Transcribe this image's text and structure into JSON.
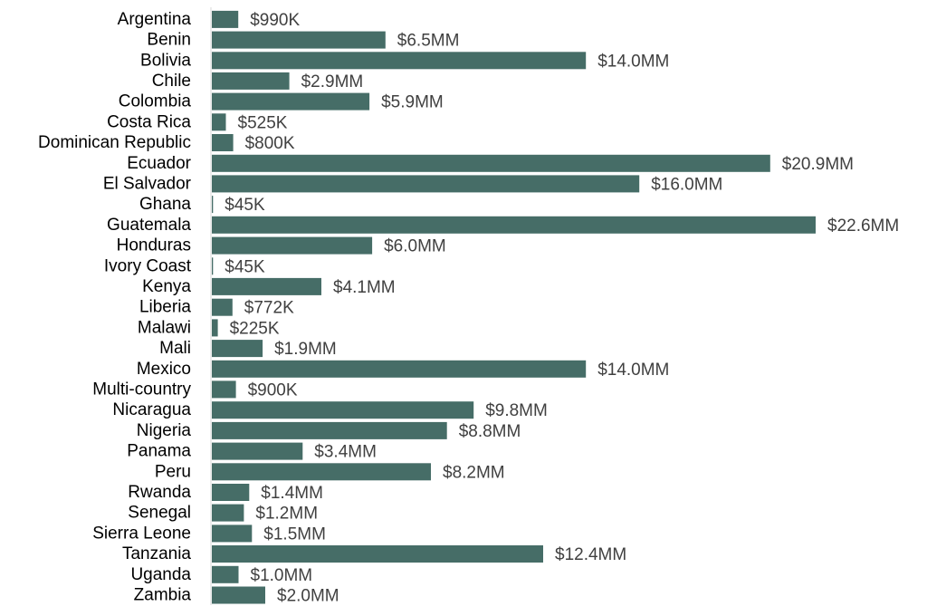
{
  "chart_data": {
    "type": "bar",
    "orientation": "horizontal",
    "title": "",
    "xlabel": "",
    "ylabel": "",
    "grid": false,
    "legend": "none",
    "bar_color": "#466D67",
    "axis_color": "#d9d9d9",
    "categories": [
      "Argentina",
      "Benin",
      "Bolivia",
      "Chile",
      "Colombia",
      "Costa Rica",
      "Dominican Republic",
      "Ecuador",
      "El Salvador",
      "Ghana",
      "Guatemala",
      "Honduras",
      "Ivory Coast",
      "Kenya",
      "Liberia",
      "Malawi",
      "Mali",
      "Mexico",
      "Multi-country",
      "Nicaragua",
      "Nigeria",
      "Panama",
      "Peru",
      "Rwanda",
      "Senegal",
      "Sierra Leone",
      "Tanzania",
      "Uganda",
      "Zambia"
    ],
    "values": [
      990000,
      6500000,
      14000000,
      2900000,
      5900000,
      525000,
      800000,
      20900000,
      16000000,
      45000,
      22600000,
      6000000,
      45000,
      4100000,
      772000,
      225000,
      1900000,
      14000000,
      900000,
      9800000,
      8800000,
      3400000,
      8200000,
      1400000,
      1200000,
      1500000,
      12400000,
      1000000,
      2000000
    ],
    "value_labels": [
      "$990K",
      "$6.5MM",
      "$14.0MM",
      "$2.9MM",
      "$5.9MM",
      "$525K",
      "$800K",
      "$20.9MM",
      "$16.0MM",
      "$45K",
      "$22.6MM",
      "$6.0MM",
      "$45K",
      "$4.1MM",
      "$772K",
      "$225K",
      "$1.9MM",
      "$14.0MM",
      "$900K",
      "$9.8MM",
      "$8.8MM",
      "$3.4MM",
      "$8.2MM",
      "$1.4MM",
      "$1.2MM",
      "$1.5MM",
      "$12.4MM",
      "$1.0MM",
      "$2.0MM"
    ],
    "xlim": [
      0,
      22600000
    ]
  }
}
